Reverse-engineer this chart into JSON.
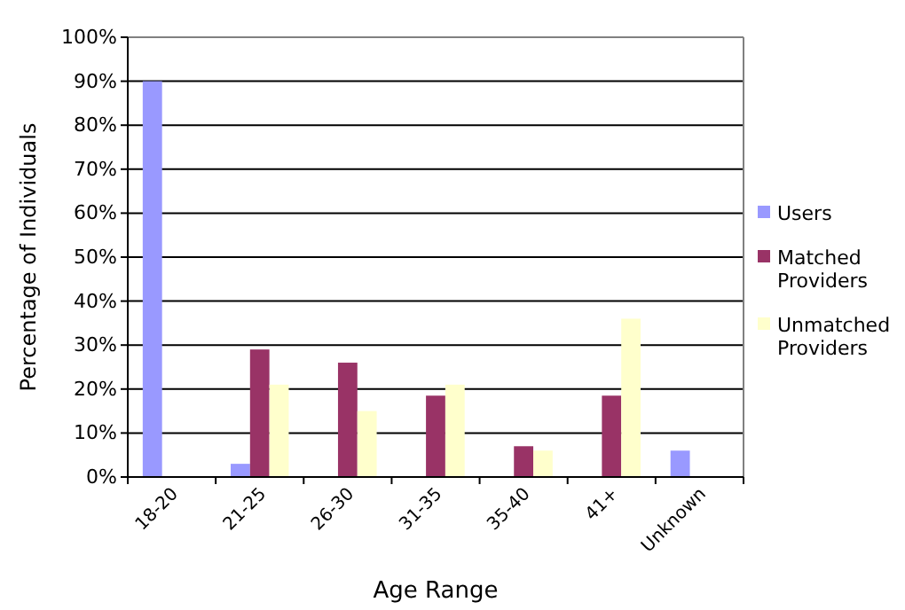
{
  "chart_data": {
    "type": "bar",
    "xlabel": "Age Range",
    "ylabel": "Percentage of Individuals",
    "categories": [
      "18-20",
      "21-25",
      "26-30",
      "31-35",
      "35-40",
      "41+",
      "Unknown"
    ],
    "series": [
      {
        "name": "Users",
        "color": "#9999ff",
        "values": [
          90,
          3,
          0,
          0,
          0,
          0,
          6
        ]
      },
      {
        "name": "Matched Providers",
        "color": "#993366",
        "values": [
          0,
          29,
          26,
          18.5,
          7,
          18.5,
          0
        ]
      },
      {
        "name": "Unmatched Providers",
        "color": "#ffffcc",
        "values": [
          0,
          21,
          15,
          21,
          6,
          36,
          0
        ]
      }
    ],
    "ylim": [
      0,
      100
    ],
    "yticks": [
      {
        "value": 0,
        "label": "0%"
      },
      {
        "value": 10,
        "label": "10%"
      },
      {
        "value": 20,
        "label": "20%"
      },
      {
        "value": 30,
        "label": "30%"
      },
      {
        "value": 40,
        "label": "40%"
      },
      {
        "value": 50,
        "label": "50%"
      },
      {
        "value": 60,
        "label": "60%"
      },
      {
        "value": 70,
        "label": "70%"
      },
      {
        "value": 80,
        "label": "80%"
      },
      {
        "value": 90,
        "label": "90%"
      },
      {
        "value": 100,
        "label": "100%"
      }
    ],
    "grid": "y",
    "legend": "right"
  }
}
